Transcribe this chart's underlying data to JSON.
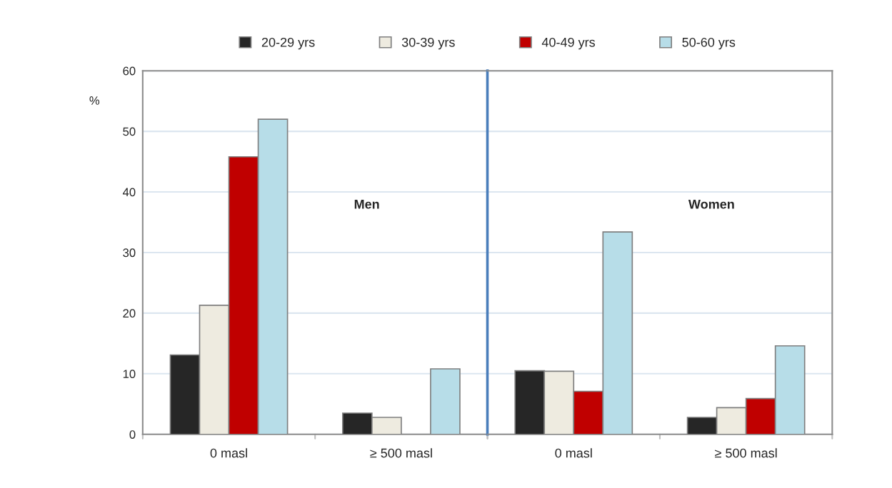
{
  "chart_data": [
    {
      "type": "bar",
      "categories": [
        "0 masl",
        "≥ 500 masl"
      ],
      "series": [
        {
          "name": "20-29 yrs",
          "color": "#262626",
          "values": [
            13.1,
            3.5
          ]
        },
        {
          "name": "30-39 yrs",
          "color": "#eeebe0",
          "values": [
            21.3,
            2.8
          ]
        },
        {
          "name": "40-49 yrs",
          "color": "#c00000",
          "values": [
            45.8,
            null
          ]
        },
        {
          "name": "50-60 yrs",
          "color": "#b7dde8",
          "values": [
            52.0,
            10.8
          ]
        }
      ],
      "ylabel": "%",
      "ylim": [
        0,
        60
      ],
      "yticks": [
        0,
        10,
        20,
        30,
        40,
        50,
        60
      ],
      "grid": "y",
      "legend": "top",
      "annotations": [
        "Men"
      ]
    },
    {
      "type": "bar",
      "categories": [
        "0 masl",
        "≥ 500 masl"
      ],
      "series": [
        {
          "color": "#262626",
          "values": [
            10.5,
            2.8
          ]
        },
        {
          "color": "#eeebe0",
          "values": [
            10.4,
            4.4
          ]
        },
        {
          "color": "#c00000",
          "values": [
            7.1,
            5.9
          ]
        },
        {
          "color": "#b7dde8",
          "values": [
            33.4,
            14.6
          ]
        }
      ],
      "ylim": [
        0,
        60
      ],
      "yticks": [
        0,
        10,
        20,
        30,
        40,
        50,
        60
      ],
      "grid": "y",
      "tick_labels": "x",
      "annotations": [
        "Women"
      ]
    }
  ]
}
